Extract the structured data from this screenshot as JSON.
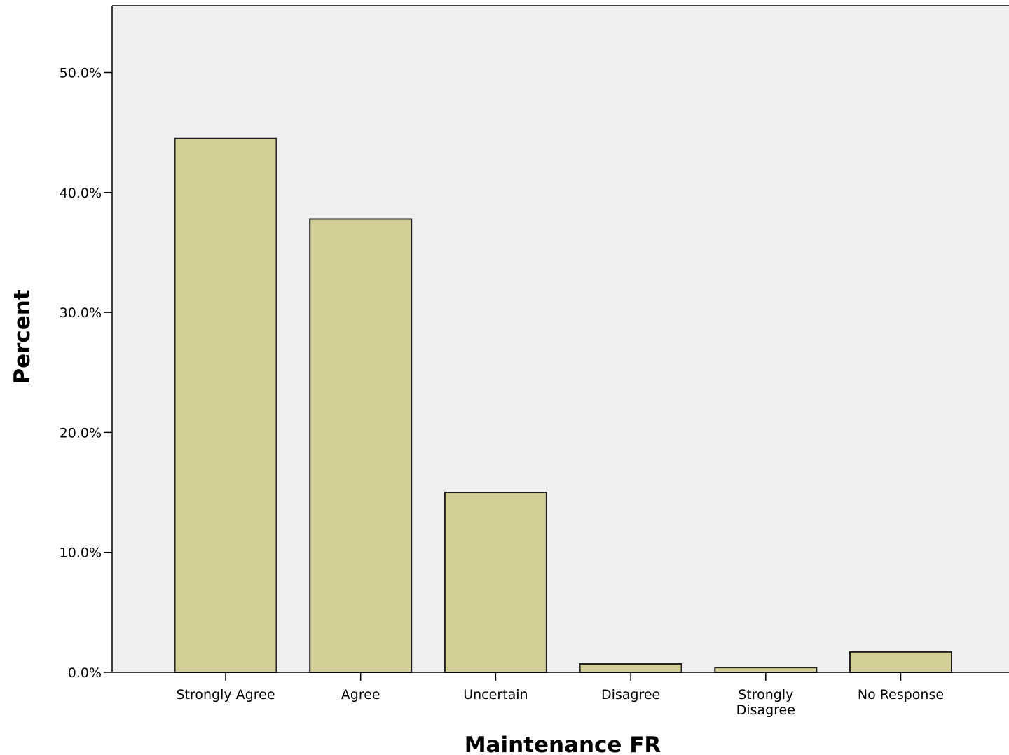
{
  "chart_data": {
    "type": "bar",
    "xlabel": "Maintenance FR",
    "ylabel": "Percent",
    "categories": [
      [
        "Strongly Agree"
      ],
      [
        "Agree"
      ],
      [
        "Uncertain"
      ],
      [
        "Disagree"
      ],
      [
        "Strongly",
        "Disagree"
      ],
      [
        "No Response"
      ]
    ],
    "values": [
      44.5,
      37.8,
      15.0,
      0.7,
      0.4,
      1.7
    ],
    "ylim": [
      0,
      55
    ],
    "yticks": [
      0,
      10,
      20,
      30,
      40,
      50
    ],
    "ytick_format": "percent_1dp",
    "grid": false,
    "legend": "none",
    "colors": {
      "plot_background": "#f0f0f0",
      "bar_fill": "#d3cf97",
      "bar_stroke": "#222222",
      "axis": "#000000"
    }
  }
}
